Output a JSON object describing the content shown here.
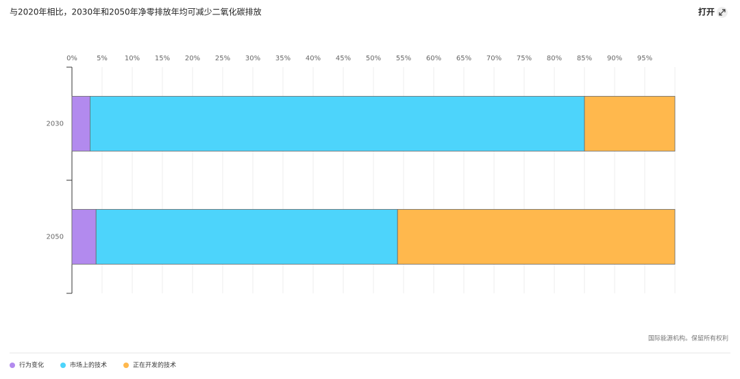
{
  "button": "打开",
  "chart_data": {
    "type": "bar",
    "orientation": "horizontal",
    "stacked": true,
    "title": "与2020年相比，2030年和2050年净零排放年均可减少二氧化碳排放",
    "source": "国际能源机构。保留所有权利",
    "categories": [
      "2030",
      "2050"
    ],
    "series": [
      {
        "name": "行为变化",
        "color": "#b28aee",
        "values": [
          3,
          4
        ]
      },
      {
        "name": "市场上的技术",
        "color": "#4dd4fb",
        "values": [
          82,
          50
        ]
      },
      {
        "name": "正在开发的技术",
        "color": "#ffb84d",
        "values": [
          15,
          46
        ]
      }
    ],
    "ylim": [
      0,
      100
    ],
    "yticks": [
      {
        "value": 0,
        "label": "0%"
      },
      {
        "value": 5,
        "label": "5%"
      },
      {
        "value": 10,
        "label": "10%"
      },
      {
        "value": 15,
        "label": "15%"
      },
      {
        "value": 20,
        "label": "20%"
      },
      {
        "value": 25,
        "label": "25%"
      },
      {
        "value": 30,
        "label": "30%"
      },
      {
        "value": 35,
        "label": "35%"
      },
      {
        "value": 40,
        "label": "40%"
      },
      {
        "value": 45,
        "label": "45%"
      },
      {
        "value": 50,
        "label": "50%"
      },
      {
        "value": 55,
        "label": "55%"
      },
      {
        "value": 60,
        "label": "60%"
      },
      {
        "value": 65,
        "label": "65%"
      },
      {
        "value": 70,
        "label": "70%"
      },
      {
        "value": 75,
        "label": "75%"
      },
      {
        "value": 80,
        "label": "80%"
      },
      {
        "value": 85,
        "label": "85%"
      },
      {
        "value": 90,
        "label": "90%"
      },
      {
        "value": 95,
        "label": "95%"
      }
    ],
    "grid": true
  }
}
